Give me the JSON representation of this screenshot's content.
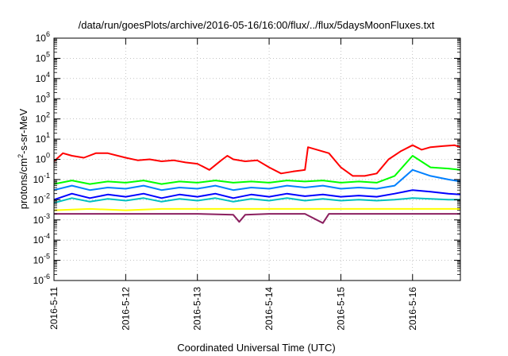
{
  "chart_data": {
    "type": "line",
    "title": "/data/run/goesPlots/archive/2016-05-16/16:00/flux/../flux/5daysMoonFluxes.txt",
    "xlabel": "Coordinated Universal Time (UTC)",
    "ylabel_parts": [
      "protons/cm",
      "2",
      "-s-sr-MeV"
    ],
    "yscale": "log",
    "ylim": [
      1e-06,
      1000000
    ],
    "y_tick_exponents": [
      -6,
      -5,
      -4,
      -3,
      -2,
      -1,
      0,
      1,
      2,
      3,
      4,
      5,
      6
    ],
    "y_tick_base": "10",
    "xlim": [
      "2016-05-11 00:00",
      "2016-05-16 16:00"
    ],
    "x_ticks": [
      "2016-5-11",
      "2016-5-12",
      "2016-5-13",
      "2016-5-14",
      "2016-5-15",
      "2016-5-16"
    ],
    "grid": true,
    "series": [
      {
        "color": "#ff0000",
        "points": [
          [
            "2016-05-11 00:00",
            0.8
          ],
          [
            "2016-05-11 03:00",
            2.0
          ],
          [
            "2016-05-11 06:00",
            1.5
          ],
          [
            "2016-05-11 10:00",
            1.2
          ],
          [
            "2016-05-11 14:00",
            2.0
          ],
          [
            "2016-05-11 18:00",
            2.0
          ],
          [
            "2016-05-12 00:00",
            1.2
          ],
          [
            "2016-05-12 04:00",
            0.9
          ],
          [
            "2016-05-12 08:00",
            1.0
          ],
          [
            "2016-05-12 12:00",
            0.8
          ],
          [
            "2016-05-12 16:00",
            0.9
          ],
          [
            "2016-05-12 20:00",
            0.7
          ],
          [
            "2016-05-13 00:00",
            0.6
          ],
          [
            "2016-05-13 04:00",
            0.3
          ],
          [
            "2016-05-13 08:00",
            0.9
          ],
          [
            "2016-05-13 10:00",
            1.5
          ],
          [
            "2016-05-13 12:00",
            1.0
          ],
          [
            "2016-05-13 16:00",
            0.8
          ],
          [
            "2016-05-13 20:00",
            0.9
          ],
          [
            "2016-05-14 00:00",
            0.4
          ],
          [
            "2016-05-14 04:00",
            0.2
          ],
          [
            "2016-05-14 08:00",
            0.25
          ],
          [
            "2016-05-14 12:00",
            0.3
          ],
          [
            "2016-05-14 13:00",
            4.0
          ],
          [
            "2016-05-14 16:00",
            3.0
          ],
          [
            "2016-05-14 20:00",
            2.0
          ],
          [
            "2016-05-15 00:00",
            0.4
          ],
          [
            "2016-05-15 04:00",
            0.15
          ],
          [
            "2016-05-15 08:00",
            0.15
          ],
          [
            "2016-05-15 12:00",
            0.2
          ],
          [
            "2016-05-15 16:00",
            1.0
          ],
          [
            "2016-05-15 20:00",
            2.5
          ],
          [
            "2016-05-16 00:00",
            5.0
          ],
          [
            "2016-05-16 03:00",
            3.0
          ],
          [
            "2016-05-16 06:00",
            4.0
          ],
          [
            "2016-05-16 10:00",
            4.5
          ],
          [
            "2016-05-16 14:00",
            5.0
          ],
          [
            "2016-05-16 16:00",
            4.0
          ]
        ]
      },
      {
        "color": "#00ff00",
        "points": [
          [
            "2016-05-11 00:00",
            0.06
          ],
          [
            "2016-05-11 06:00",
            0.09
          ],
          [
            "2016-05-11 12:00",
            0.06
          ],
          [
            "2016-05-11 18:00",
            0.08
          ],
          [
            "2016-05-12 00:00",
            0.07
          ],
          [
            "2016-05-12 06:00",
            0.09
          ],
          [
            "2016-05-12 12:00",
            0.06
          ],
          [
            "2016-05-12 18:00",
            0.08
          ],
          [
            "2016-05-13 00:00",
            0.07
          ],
          [
            "2016-05-13 06:00",
            0.09
          ],
          [
            "2016-05-13 12:00",
            0.07
          ],
          [
            "2016-05-13 18:00",
            0.08
          ],
          [
            "2016-05-14 00:00",
            0.07
          ],
          [
            "2016-05-14 06:00",
            0.09
          ],
          [
            "2016-05-14 12:00",
            0.08
          ],
          [
            "2016-05-14 18:00",
            0.09
          ],
          [
            "2016-05-15 00:00",
            0.07
          ],
          [
            "2016-05-15 06:00",
            0.08
          ],
          [
            "2016-05-15 12:00",
            0.07
          ],
          [
            "2016-05-15 18:00",
            0.15
          ],
          [
            "2016-05-16 00:00",
            1.5
          ],
          [
            "2016-05-16 06:00",
            0.4
          ],
          [
            "2016-05-16 12:00",
            0.35
          ],
          [
            "2016-05-16 16:00",
            0.3
          ]
        ]
      },
      {
        "color": "#0080ff",
        "points": [
          [
            "2016-05-11 00:00",
            0.03
          ],
          [
            "2016-05-11 06:00",
            0.05
          ],
          [
            "2016-05-11 12:00",
            0.03
          ],
          [
            "2016-05-11 18:00",
            0.04
          ],
          [
            "2016-05-12 00:00",
            0.035
          ],
          [
            "2016-05-12 06:00",
            0.05
          ],
          [
            "2016-05-12 12:00",
            0.03
          ],
          [
            "2016-05-12 18:00",
            0.04
          ],
          [
            "2016-05-13 00:00",
            0.035
          ],
          [
            "2016-05-13 06:00",
            0.05
          ],
          [
            "2016-05-13 12:00",
            0.03
          ],
          [
            "2016-05-13 18:00",
            0.04
          ],
          [
            "2016-05-14 00:00",
            0.035
          ],
          [
            "2016-05-14 06:00",
            0.05
          ],
          [
            "2016-05-14 12:00",
            0.04
          ],
          [
            "2016-05-14 18:00",
            0.05
          ],
          [
            "2016-05-15 00:00",
            0.035
          ],
          [
            "2016-05-15 06:00",
            0.04
          ],
          [
            "2016-05-15 12:00",
            0.035
          ],
          [
            "2016-05-15 18:00",
            0.05
          ],
          [
            "2016-05-16 00:00",
            0.3
          ],
          [
            "2016-05-16 06:00",
            0.15
          ],
          [
            "2016-05-16 12:00",
            0.1
          ],
          [
            "2016-05-16 16:00",
            0.08
          ]
        ]
      },
      {
        "color": "#00c0c0",
        "points": [
          [
            "2016-05-11 00:00",
            0.007
          ],
          [
            "2016-05-11 06:00",
            0.012
          ],
          [
            "2016-05-11 12:00",
            0.008
          ],
          [
            "2016-05-11 18:00",
            0.011
          ],
          [
            "2016-05-12 00:00",
            0.009
          ],
          [
            "2016-05-12 06:00",
            0.012
          ],
          [
            "2016-05-12 12:00",
            0.008
          ],
          [
            "2016-05-12 18:00",
            0.011
          ],
          [
            "2016-05-13 00:00",
            0.009
          ],
          [
            "2016-05-13 06:00",
            0.012
          ],
          [
            "2016-05-13 12:00",
            0.008
          ],
          [
            "2016-05-13 18:00",
            0.011
          ],
          [
            "2016-05-14 00:00",
            0.009
          ],
          [
            "2016-05-14 06:00",
            0.012
          ],
          [
            "2016-05-14 12:00",
            0.009
          ],
          [
            "2016-05-14 18:00",
            0.011
          ],
          [
            "2016-05-15 00:00",
            0.009
          ],
          [
            "2016-05-15 06:00",
            0.01
          ],
          [
            "2016-05-15 12:00",
            0.009
          ],
          [
            "2016-05-15 18:00",
            0.01
          ],
          [
            "2016-05-16 00:00",
            0.012
          ],
          [
            "2016-05-16 06:00",
            0.011
          ],
          [
            "2016-05-16 12:00",
            0.01
          ],
          [
            "2016-05-16 16:00",
            0.01
          ]
        ]
      },
      {
        "color": "#0000ff",
        "points": [
          [
            "2016-05-11 00:00",
            0.01
          ],
          [
            "2016-05-11 06:00",
            0.02
          ],
          [
            "2016-05-11 12:00",
            0.012
          ],
          [
            "2016-05-11 18:00",
            0.018
          ],
          [
            "2016-05-12 00:00",
            0.014
          ],
          [
            "2016-05-12 06:00",
            0.02
          ],
          [
            "2016-05-12 12:00",
            0.012
          ],
          [
            "2016-05-12 18:00",
            0.018
          ],
          [
            "2016-05-13 00:00",
            0.014
          ],
          [
            "2016-05-13 06:00",
            0.02
          ],
          [
            "2016-05-13 12:00",
            0.012
          ],
          [
            "2016-05-13 18:00",
            0.018
          ],
          [
            "2016-05-14 00:00",
            0.014
          ],
          [
            "2016-05-14 06:00",
            0.02
          ],
          [
            "2016-05-14 12:00",
            0.015
          ],
          [
            "2016-05-14 18:00",
            0.018
          ],
          [
            "2016-05-15 00:00",
            0.014
          ],
          [
            "2016-05-15 06:00",
            0.016
          ],
          [
            "2016-05-15 12:00",
            0.014
          ],
          [
            "2016-05-15 18:00",
            0.02
          ],
          [
            "2016-05-16 00:00",
            0.03
          ],
          [
            "2016-05-16 06:00",
            0.025
          ],
          [
            "2016-05-16 12:00",
            0.02
          ],
          [
            "2016-05-16 16:00",
            0.018
          ]
        ]
      },
      {
        "color": "#ffff00",
        "points": [
          [
            "2016-05-11 00:00",
            0.003
          ],
          [
            "2016-05-11 12:00",
            0.0035
          ],
          [
            "2016-05-12 00:00",
            0.003
          ],
          [
            "2016-05-12 12:00",
            0.0035
          ],
          [
            "2016-05-13 00:00",
            0.0035
          ],
          [
            "2016-05-13 12:00",
            0.0035
          ],
          [
            "2016-05-14 00:00",
            0.0035
          ],
          [
            "2016-05-14 12:00",
            0.0035
          ],
          [
            "2016-05-15 00:00",
            0.0035
          ],
          [
            "2016-05-15 12:00",
            0.0035
          ],
          [
            "2016-05-16 00:00",
            0.0035
          ],
          [
            "2016-05-16 16:00",
            0.0035
          ]
        ]
      },
      {
        "color": "#8b2060",
        "points": [
          [
            "2016-05-11 00:00",
            0.002
          ],
          [
            "2016-05-11 12:00",
            0.002
          ],
          [
            "2016-05-12 00:00",
            0.002
          ],
          [
            "2016-05-12 12:00",
            0.002
          ],
          [
            "2016-05-13 00:00",
            0.002
          ],
          [
            "2016-05-13 12:00",
            0.0018
          ],
          [
            "2016-05-13 14:00",
            0.0008
          ],
          [
            "2016-05-13 16:00",
            0.0018
          ],
          [
            "2016-05-14 00:00",
            0.002
          ],
          [
            "2016-05-14 12:00",
            0.002
          ],
          [
            "2016-05-14 18:00",
            0.0007
          ],
          [
            "2016-05-14 20:00",
            0.002
          ],
          [
            "2016-05-15 00:00",
            0.002
          ],
          [
            "2016-05-15 12:00",
            0.002
          ],
          [
            "2016-05-16 00:00",
            0.002
          ],
          [
            "2016-05-16 16:00",
            0.002
          ]
        ]
      }
    ]
  }
}
